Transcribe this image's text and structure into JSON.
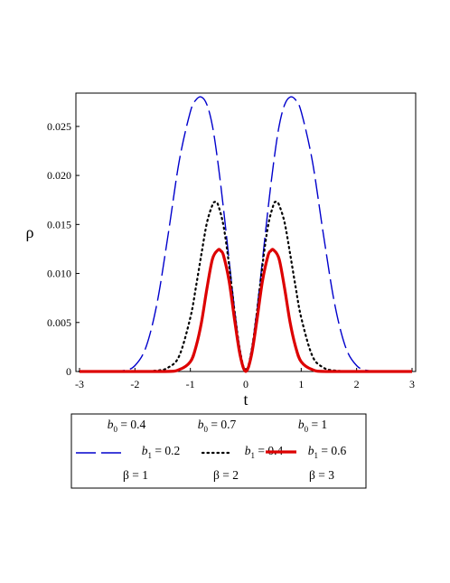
{
  "chart_data": {
    "type": "line",
    "title": "",
    "xlabel": "t",
    "ylabel": "ρ",
    "xlim": [
      -3,
      3
    ],
    "ylim": [
      0,
      0.0284
    ],
    "xticks": [
      "-3",
      "-2",
      "-1",
      "0",
      "1",
      "2",
      "3"
    ],
    "yticks": [
      "0",
      "0.005",
      "0.010",
      "0.015",
      "0.020",
      "0.025"
    ],
    "grid": false,
    "legend_position": "bottom",
    "series": [
      {
        "name": "b0 = 0.4, b1 = 0.2, β = 1",
        "color": "#0000cc",
        "style": "long-dash",
        "x": [
          -3,
          -2.5,
          -2.2,
          -2,
          -1.8,
          -1.6,
          -1.4,
          -1.2,
          -1,
          -0.9,
          -0.8,
          -0.7,
          -0.6,
          -0.5,
          -0.4,
          -0.3,
          -0.2,
          -0.1,
          0,
          0.1,
          0.2,
          0.3,
          0.4,
          0.5,
          0.6,
          0.7,
          0.8,
          0.9,
          1,
          1.2,
          1.4,
          1.6,
          1.8,
          2,
          2.2,
          2.5,
          3
        ],
        "y": [
          0,
          0.0,
          0.0001,
          0.0006,
          0.0025,
          0.007,
          0.014,
          0.0215,
          0.0265,
          0.0277,
          0.028,
          0.0272,
          0.025,
          0.0212,
          0.0165,
          0.0113,
          0.0062,
          0.0021,
          0,
          0.0021,
          0.0062,
          0.0113,
          0.0165,
          0.0212,
          0.025,
          0.0272,
          0.028,
          0.0277,
          0.0265,
          0.0215,
          0.014,
          0.007,
          0.0025,
          0.0006,
          0.0001,
          0.0,
          0
        ]
      },
      {
        "name": "b0 = 0.7, b1 = 0.4, β = 2",
        "color": "#000000",
        "style": "dotted",
        "x": [
          -3,
          -2,
          -1.6,
          -1.4,
          -1.2,
          -1,
          -0.9,
          -0.8,
          -0.7,
          -0.6,
          -0.55,
          -0.5,
          -0.4,
          -0.3,
          -0.2,
          -0.1,
          0,
          0.1,
          0.2,
          0.3,
          0.4,
          0.5,
          0.55,
          0.6,
          0.7,
          0.8,
          0.9,
          1,
          1.2,
          1.4,
          1.6,
          2,
          3
        ],
        "y": [
          0,
          0.0,
          0.0001,
          0.0004,
          0.0016,
          0.0055,
          0.0086,
          0.012,
          0.0152,
          0.017,
          0.0173,
          0.017,
          0.0148,
          0.0108,
          0.006,
          0.002,
          0,
          0.002,
          0.006,
          0.0108,
          0.0148,
          0.017,
          0.0173,
          0.017,
          0.0152,
          0.012,
          0.0086,
          0.0055,
          0.0016,
          0.0004,
          0.0001,
          0.0,
          0
        ]
      },
      {
        "name": "b0 = 1, b1 = 0.6, β = 3",
        "color": "#dd0000",
        "style": "solid-thick",
        "x": [
          -3,
          -1.5,
          -1.2,
          -1.0,
          -0.9,
          -0.8,
          -0.7,
          -0.6,
          -0.5,
          -0.45,
          -0.4,
          -0.3,
          -0.2,
          -0.1,
          0,
          0.1,
          0.2,
          0.3,
          0.4,
          0.45,
          0.5,
          0.6,
          0.7,
          0.8,
          0.9,
          1.0,
          1.2,
          1.5,
          3
        ],
        "y": [
          0,
          0.0,
          0.0002,
          0.001,
          0.0025,
          0.005,
          0.0085,
          0.0115,
          0.0124,
          0.0123,
          0.0118,
          0.0092,
          0.0052,
          0.0016,
          0,
          0.0016,
          0.0052,
          0.0092,
          0.0118,
          0.0123,
          0.0124,
          0.0115,
          0.0085,
          0.005,
          0.0025,
          0.001,
          0.0002,
          0.0,
          0
        ]
      }
    ],
    "legend": {
      "rows": [
        [
          {
            "var": "b",
            "sub": "0",
            "rest": " = 0.4"
          },
          {
            "var": "b",
            "sub": "0",
            "rest": " = 0.7"
          },
          {
            "var": "b",
            "sub": "0",
            "rest": " = 1"
          }
        ],
        [
          {
            "var": "b",
            "sub": "1",
            "rest": " = 0.2"
          },
          {
            "var": "b",
            "sub": "1",
            "rest": " = 0.4"
          },
          {
            "var": "b",
            "sub": "1",
            "rest": " = 0.6"
          }
        ],
        [
          {
            "var": "",
            "sub": "",
            "rest": "β = 1"
          },
          {
            "var": "",
            "sub": "",
            "rest": "β = 2"
          },
          {
            "var": "",
            "sub": "",
            "rest": "β = 3"
          }
        ]
      ]
    }
  }
}
